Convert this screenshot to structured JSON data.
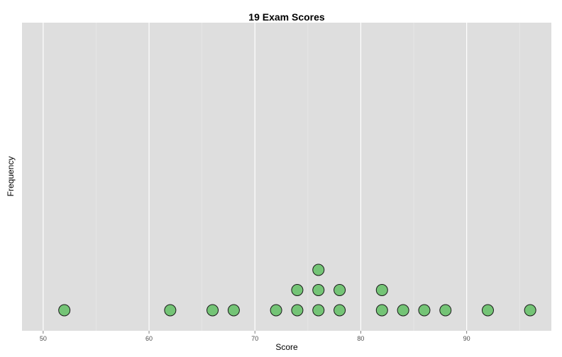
{
  "chart_data": {
    "type": "scatter",
    "subtype": "dotplot",
    "title": "19 Exam Scores",
    "xlabel": "Score",
    "ylabel": "Frequency",
    "xlim": [
      48,
      98
    ],
    "x_ticks": [
      "50",
      "60",
      "70",
      "80",
      "90"
    ],
    "x_tick_values": [
      50,
      60,
      70,
      80,
      90
    ],
    "grid": true,
    "background": "#dedede",
    "grid_color": "#ffffff",
    "point_fill": "#74c476",
    "point_stroke": "#1a1a1a",
    "scores": [
      52,
      62,
      66,
      68,
      72,
      74,
      74,
      76,
      76,
      76,
      78,
      78,
      82,
      82,
      84,
      86,
      88,
      92,
      96
    ]
  }
}
